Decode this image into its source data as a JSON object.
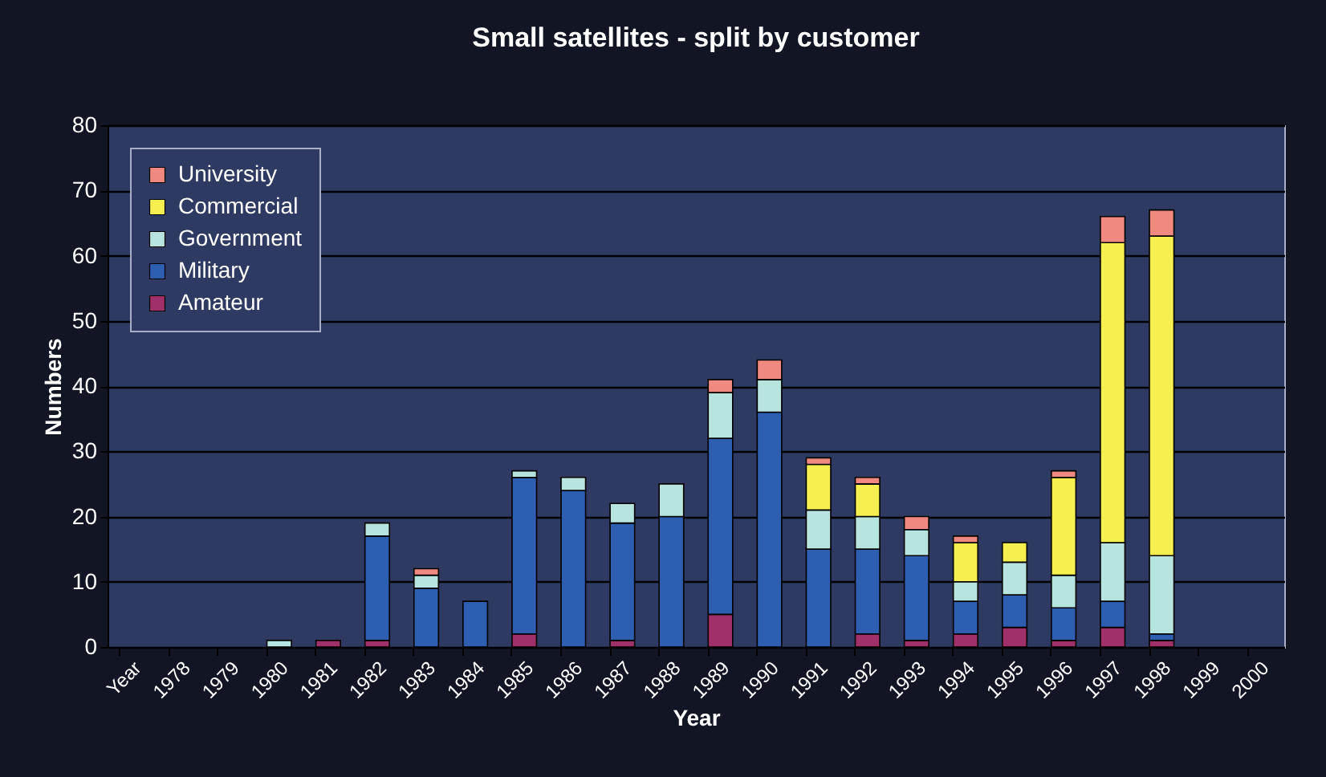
{
  "chart_data": {
    "type": "bar",
    "title": "Small satellites - split by customer",
    "xlabel": "Year",
    "ylabel": "Numbers",
    "stacked": true,
    "grid": "y",
    "legend": "top left",
    "categories": [
      "Year",
      "1978",
      "1979",
      "1980",
      "1981",
      "1982",
      "1983",
      "1984",
      "1985",
      "1986",
      "1987",
      "1988",
      "1989",
      "1990",
      "1991",
      "1992",
      "1993",
      "1994",
      "1995",
      "1996",
      "1997",
      "1998",
      "1999",
      "2000"
    ],
    "ylim": [
      0,
      80
    ],
    "yticks": [
      0,
      10,
      20,
      30,
      40,
      50,
      60,
      70,
      80
    ],
    "series": [
      {
        "name": "Amateur",
        "color": "#a0306a",
        "values": [
          null,
          null,
          null,
          null,
          1,
          1,
          null,
          null,
          2,
          null,
          1,
          null,
          5,
          null,
          null,
          2,
          1,
          2,
          3,
          1,
          3,
          1,
          null,
          null
        ]
      },
      {
        "name": "Military",
        "color": "#2e5eb0",
        "values": [
          null,
          null,
          null,
          null,
          null,
          16,
          9,
          7,
          24,
          24,
          18,
          20,
          27,
          36,
          15,
          13,
          13,
          5,
          5,
          5,
          4,
          1,
          null,
          null
        ]
      },
      {
        "name": "Government",
        "color": "#b8e4e0",
        "values": [
          null,
          null,
          null,
          1,
          null,
          2,
          2,
          null,
          1,
          2,
          3,
          5,
          7,
          5,
          6,
          5,
          4,
          3,
          5,
          5,
          9,
          12,
          null,
          null
        ]
      },
      {
        "name": "Commercial",
        "color": "#f5f050",
        "values": [
          null,
          null,
          null,
          null,
          null,
          null,
          null,
          null,
          null,
          null,
          null,
          null,
          null,
          null,
          7,
          5,
          null,
          6,
          3,
          15,
          46,
          49,
          null,
          null
        ]
      },
      {
        "name": "University",
        "color": "#f08a80",
        "values": [
          null,
          null,
          null,
          null,
          null,
          null,
          1,
          null,
          null,
          null,
          null,
          null,
          2,
          3,
          1,
          1,
          2,
          1,
          null,
          1,
          4,
          4,
          null,
          null
        ]
      }
    ]
  }
}
